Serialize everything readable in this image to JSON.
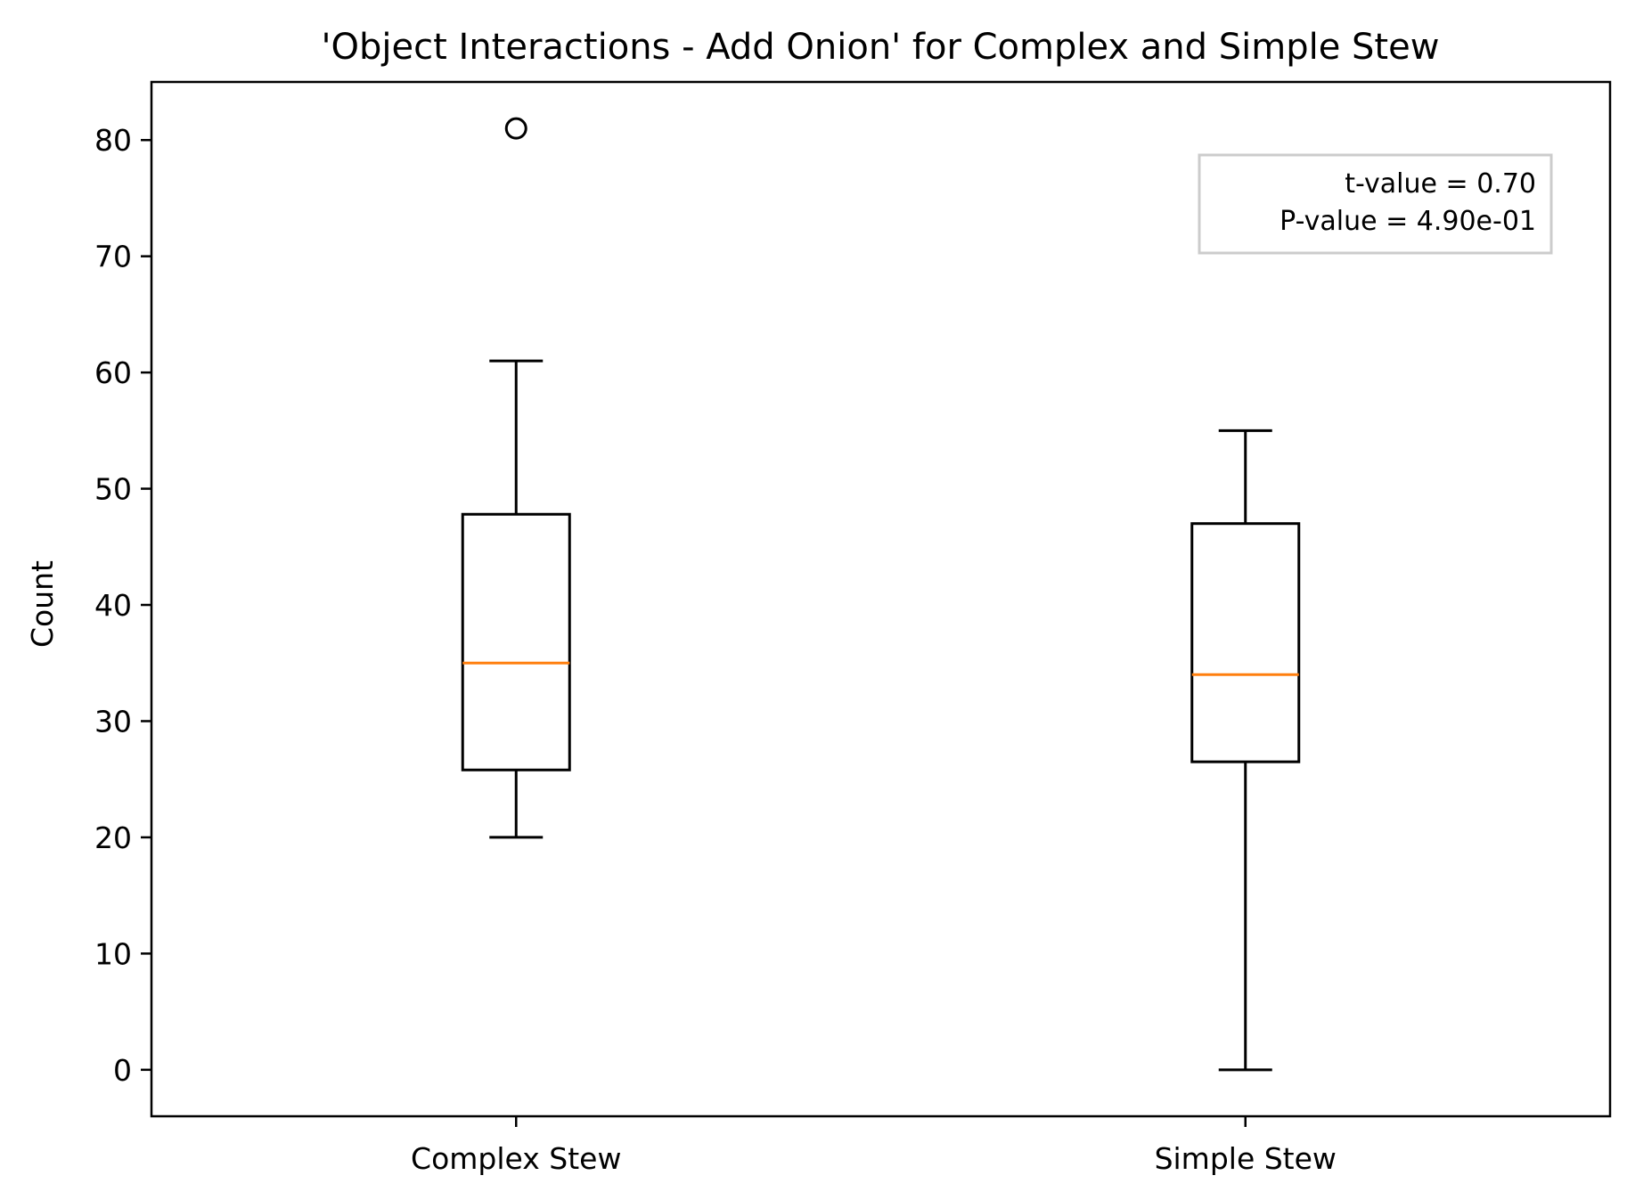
{
  "chart_data": {
    "type": "box",
    "title": "'Object Interactions - Add Onion' for Complex and Simple Stew",
    "xlabel": "",
    "ylabel": "Count",
    "categories": [
      "Complex Stew",
      "Simple Stew"
    ],
    "ylim": [
      -4,
      85
    ],
    "yticks": [
      0,
      10,
      20,
      30,
      40,
      50,
      60,
      70,
      80
    ],
    "grid": false,
    "colors": {
      "box": "#000000",
      "median": "#ff7f0e",
      "stats_box_border": "#cccccc"
    },
    "boxes": [
      {
        "name": "Complex Stew",
        "whisker_low": 20,
        "q1": 25.8,
        "median": 35,
        "q3": 47.8,
        "whisker_high": 61,
        "outliers": [
          81
        ]
      },
      {
        "name": "Simple Stew",
        "whisker_low": 0,
        "q1": 26.5,
        "median": 34,
        "q3": 47,
        "whisker_high": 55,
        "outliers": []
      }
    ],
    "annotation": {
      "position": "top-right",
      "lines": [
        "t-value = 0.70",
        "P-value = 4.90e-01"
      ]
    }
  }
}
